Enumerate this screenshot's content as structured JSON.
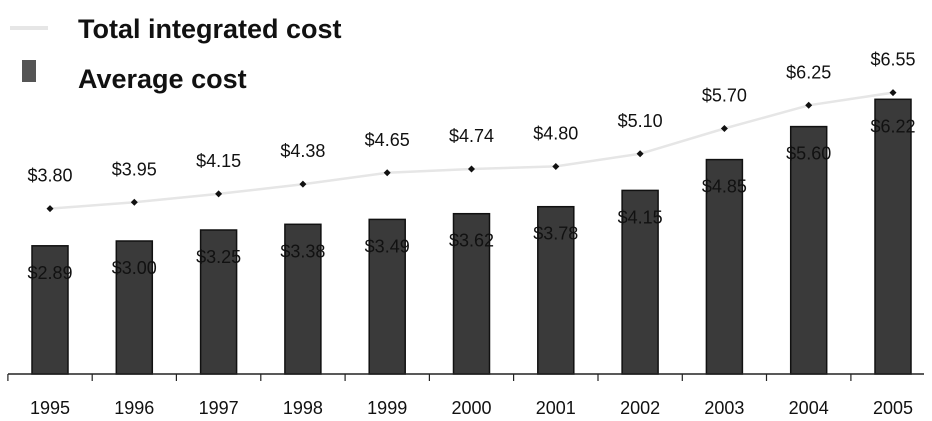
{
  "chart_data": {
    "type": "bar",
    "categories": [
      "1995",
      "1996",
      "1997",
      "1998",
      "1999",
      "2000",
      "2001",
      "2002",
      "2003",
      "2004",
      "2005"
    ],
    "series": [
      {
        "name": "Total integrated cost",
        "kind": "line",
        "values": [
          3.8,
          3.95,
          4.15,
          4.38,
          4.65,
          4.74,
          4.8,
          5.1,
          5.7,
          6.25,
          6.55
        ],
        "labels": [
          "$3.80",
          "$3.95",
          "$4.15",
          "$4.38",
          "$4.65",
          "$4.74",
          "$4.80",
          "$5.10",
          "$5.70",
          "$6.25",
          "$6.55"
        ]
      },
      {
        "name": "Average cost",
        "kind": "bar",
        "values": [
          2.89,
          3.0,
          3.25,
          3.38,
          3.49,
          3.62,
          3.78,
          4.15,
          4.85,
          5.6,
          6.22
        ],
        "labels": [
          "$2.89",
          "$3.00",
          "$3.25",
          "$3.38",
          "$3.49",
          "$3.62",
          "$3.78",
          "$4.15",
          "$4.85",
          "$5.60",
          "$6.22"
        ]
      }
    ],
    "title": "",
    "xlabel": "",
    "ylabel": "",
    "ylim": [
      0,
      6.5
    ],
    "grid": false,
    "legend": "top-left",
    "colors": {
      "bar": "#3a3a3a",
      "bar_edge": "#111111",
      "line": "#e6e6e6",
      "marker": "#111111",
      "legend_bar": "#555555"
    }
  }
}
